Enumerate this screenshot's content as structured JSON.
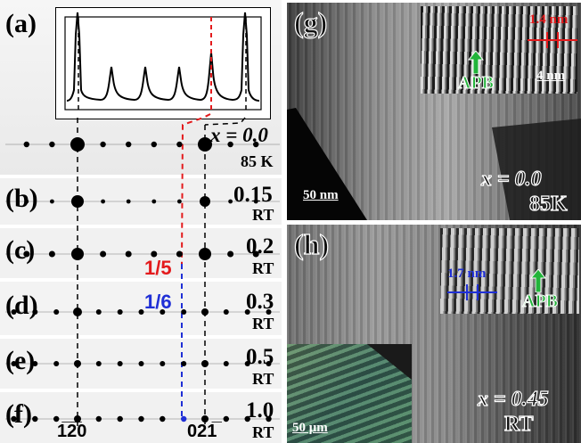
{
  "left_panels": {
    "a": {
      "label": "(a)",
      "x": "x = 0.0",
      "temp": "85 K"
    },
    "b": {
      "label": "(b)",
      "x": "0.15",
      "temp": "RT"
    },
    "c": {
      "label": "(c)",
      "x": "0.2",
      "temp": "RT"
    },
    "d": {
      "label": "(d)",
      "x": "0.3",
      "temp": "RT"
    },
    "e": {
      "label": "(e)",
      "x": "0.5",
      "temp": "RT"
    },
    "f": {
      "label": "(f)",
      "x": "1.0",
      "temp": "RT"
    }
  },
  "annotations": {
    "one_fifth": "1/5",
    "one_sixth": "1/6",
    "miller_left": "1̅2̅0",
    "miller_right": "021̅"
  },
  "right_panels": {
    "g": {
      "label": "(g)",
      "x": "x = 0.0",
      "temp": "85K",
      "scale": "50 nm",
      "inset_period": "1.4 nm",
      "inset_scale": "4 nm",
      "apb": "APB"
    },
    "h": {
      "label": "(h)",
      "x": "x = 0.45",
      "temp": "RT",
      "inset_period": "1.7 nm",
      "apb": "APB",
      "optical_scale": "50 μm"
    }
  },
  "colors": {
    "red": "#e31a1c",
    "blue": "#1f2fd6",
    "green": "#22b43a"
  }
}
